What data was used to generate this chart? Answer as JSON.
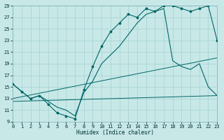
{
  "xlabel": "Humidex (Indice chaleur)",
  "bg_color": "#c8e8e8",
  "grid_color": "#aad4d4",
  "line_color": "#006666",
  "x_min": 0,
  "x_max": 23,
  "y_min": 9,
  "y_max": 29,
  "x_ticks": [
    0,
    1,
    2,
    3,
    4,
    5,
    6,
    7,
    8,
    9,
    10,
    11,
    12,
    13,
    14,
    15,
    16,
    17,
    18,
    19,
    20,
    21,
    22,
    23
  ],
  "y_ticks": [
    9,
    11,
    13,
    15,
    17,
    19,
    21,
    23,
    25,
    27,
    29
  ],
  "line1_x": [
    0,
    1,
    2,
    3,
    4,
    5,
    6,
    7,
    8,
    9,
    10,
    11,
    12,
    13,
    14,
    15,
    16,
    17,
    18,
    19,
    20,
    21,
    22,
    23
  ],
  "line1_y": [
    15.5,
    14.2,
    13.0,
    13.5,
    12.0,
    10.5,
    10.0,
    9.5,
    14.5,
    18.5,
    22.0,
    24.5,
    26.0,
    27.5,
    27.0,
    28.5,
    28.0,
    29.0,
    29.0,
    28.5,
    28.0,
    28.5,
    29.0,
    23.0
  ],
  "line2_x": [
    0,
    1,
    2,
    3,
    4,
    5,
    6,
    7,
    8,
    9,
    10,
    11,
    12,
    13,
    14,
    15,
    16,
    17,
    18,
    19,
    20,
    21,
    22,
    23
  ],
  "line2_y": [
    15.5,
    14.2,
    13.0,
    13.5,
    12.5,
    11.5,
    11.0,
    10.0,
    14.0,
    16.0,
    19.0,
    20.5,
    22.0,
    24.0,
    26.0,
    27.5,
    28.0,
    28.5,
    19.5,
    18.5,
    18.0,
    19.0,
    15.0,
    13.5
  ],
  "line3_x": [
    0,
    23
  ],
  "line3_y": [
    13.0,
    20.0
  ],
  "line4_x": [
    0,
    23
  ],
  "line4_y": [
    12.5,
    13.5
  ]
}
